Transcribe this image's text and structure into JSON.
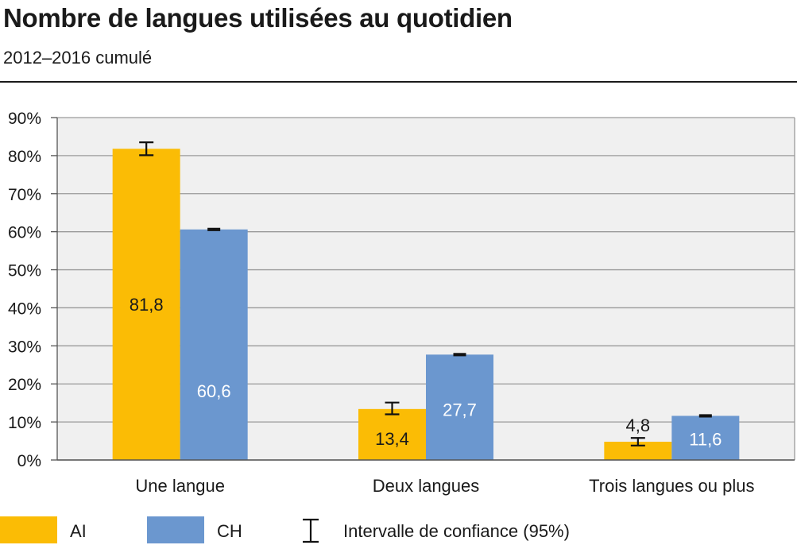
{
  "header": {
    "title": "Nombre de langues utilisées au quotidien",
    "subtitle": "2012–2016 cumulé"
  },
  "chart_data": {
    "type": "bar",
    "categories": [
      "Une langue",
      "Deux langues",
      "Trois langues ou plus"
    ],
    "series": [
      {
        "name": "AI",
        "color": "#fbbc05",
        "values": [
          81.8,
          13.4,
          4.8
        ],
        "ci": [
          [
            80.1,
            83.5
          ],
          [
            12.0,
            15.1
          ],
          [
            3.8,
            5.8
          ]
        ],
        "labels": [
          "81,8",
          "13,4",
          "4,8"
        ]
      },
      {
        "name": "CH",
        "color": "#6b97cf",
        "values": [
          60.6,
          27.7,
          11.6
        ],
        "ci": [
          [
            60.4,
            60.8
          ],
          [
            27.5,
            27.9
          ],
          [
            11.4,
            11.8
          ]
        ],
        "labels": [
          "60,6",
          "27,7",
          "11,6"
        ]
      }
    ],
    "ylim": [
      0,
      90
    ],
    "yticks": [
      0,
      10,
      20,
      30,
      40,
      50,
      60,
      70,
      80,
      90
    ],
    "ytick_labels": [
      "0%",
      "10%",
      "20%",
      "30%",
      "40%",
      "50%",
      "60%",
      "70%",
      "80%",
      "90%"
    ],
    "grid": true,
    "plot_background": "#f0f0f0",
    "legend_position": "bottom-left",
    "legend": {
      "ci_label": "Intervalle de confiance (95%)"
    }
  }
}
